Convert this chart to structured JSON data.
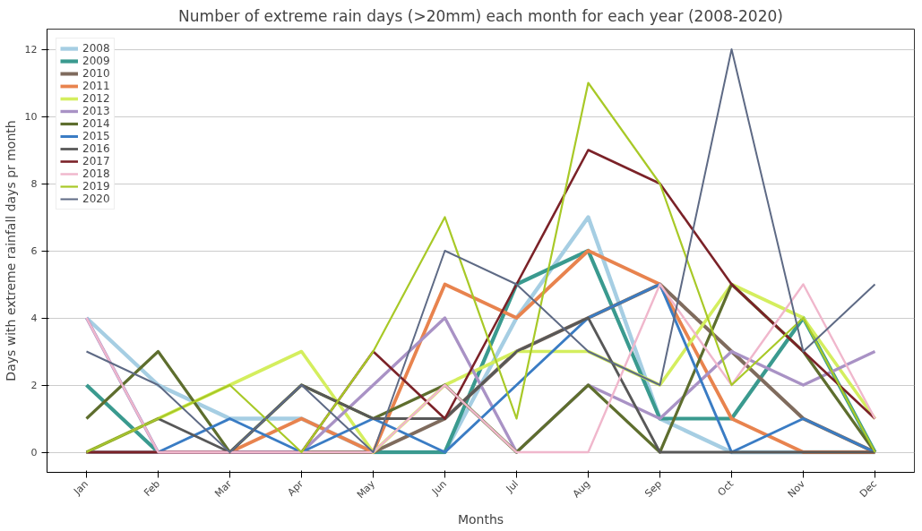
{
  "chart_data": {
    "type": "line",
    "title": "Number of extreme rain days (>20mm) each month for each year (2008-2020)",
    "xlabel": "Months",
    "ylabel": "Days with extreme rainfall days pr month",
    "categories": [
      "Jan",
      "Feb",
      "Mar",
      "Apr",
      "May",
      "Jun",
      "Jul",
      "Aug",
      "Sep",
      "Oct",
      "Nov",
      "Dec"
    ],
    "ylim": [
      -0.6,
      12.6
    ],
    "yticks": [
      0,
      2,
      4,
      6,
      8,
      10,
      12
    ],
    "grid": "y",
    "legend": "top left",
    "line_style": "solid",
    "series": [
      {
        "name": "2008",
        "color": "#a6cee3",
        "values": [
          4,
          2,
          1,
          1,
          0,
          0,
          4,
          7,
          1,
          0,
          0,
          0
        ]
      },
      {
        "name": "2009",
        "color": "#3a9a8f",
        "values": [
          2,
          0,
          0,
          0,
          0,
          0,
          5,
          6,
          1,
          1,
          4,
          0
        ]
      },
      {
        "name": "2010",
        "color": "#7f6b5d",
        "values": [
          0,
          0,
          0,
          0,
          0,
          1,
          3,
          4,
          5,
          3,
          1,
          0
        ]
      },
      {
        "name": "2011",
        "color": "#e8834e",
        "values": [
          0,
          0,
          0,
          1,
          0,
          5,
          4,
          6,
          5,
          1,
          0,
          0
        ]
      },
      {
        "name": "2012",
        "color": "#d4ee5e",
        "values": [
          0,
          1,
          2,
          3,
          0,
          2,
          3,
          3,
          2,
          5,
          4,
          1
        ]
      },
      {
        "name": "2013",
        "color": "#a992c5",
        "values": [
          4,
          0,
          0,
          0,
          2,
          4,
          0,
          2,
          1,
          3,
          2,
          3
        ]
      },
      {
        "name": "2014",
        "color": "#5e6e2e",
        "values": [
          1,
          3,
          0,
          2,
          1,
          2,
          0,
          2,
          0,
          5,
          3,
          0
        ]
      },
      {
        "name": "2015",
        "color": "#3a7cc4",
        "values": [
          0,
          0,
          1,
          0,
          1,
          0,
          2,
          4,
          5,
          0,
          1,
          0
        ]
      },
      {
        "name": "2016",
        "color": "#585858",
        "values": [
          0,
          1,
          0,
          2,
          1,
          1,
          3,
          4,
          0,
          0,
          0,
          0
        ]
      },
      {
        "name": "2017",
        "color": "#7b2228",
        "values": [
          0,
          0,
          0,
          0,
          3,
          1,
          5,
          9,
          8,
          5,
          3,
          1
        ]
      },
      {
        "name": "2018",
        "color": "#f0b7cc",
        "values": [
          4,
          0,
          0,
          0,
          0,
          2,
          0,
          0,
          5,
          2,
          5,
          1
        ]
      },
      {
        "name": "2019",
        "color": "#a8c927",
        "values": [
          0,
          1,
          2,
          0,
          3,
          7,
          1,
          11,
          8,
          2,
          4,
          0
        ]
      },
      {
        "name": "2020",
        "color": "#5e6a85",
        "values": [
          3,
          2,
          0,
          2,
          0,
          6,
          5,
          3,
          2,
          12,
          3,
          5
        ]
      }
    ]
  }
}
